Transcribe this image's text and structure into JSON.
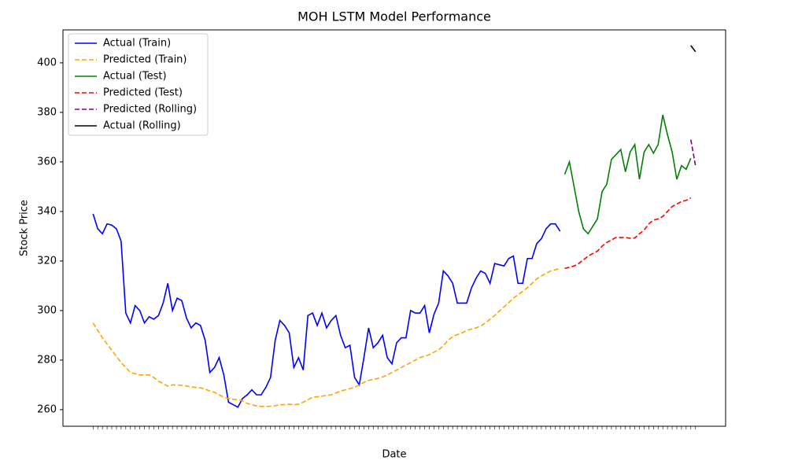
{
  "chart_data": {
    "type": "line",
    "title": "MOH LSTM Model Performance",
    "x_label": "Date",
    "y_label": "Stock Price",
    "ylim": [
      253.3,
      413.3
    ],
    "yticks": [
      260,
      280,
      300,
      320,
      340,
      360,
      380,
      400
    ],
    "legend": "upper left",
    "categories": [
      null,
      null,
      null,
      null,
      null,
      null,
      null,
      null,
      null,
      null,
      null,
      null,
      null,
      null,
      null,
      null,
      null,
      null,
      null,
      null,
      null,
      null,
      null,
      null,
      null,
      null,
      null,
      null,
      null,
      null,
      null,
      null,
      null,
      null,
      null,
      null,
      null,
      null,
      null,
      null,
      null,
      null,
      null,
      null,
      null,
      null,
      null,
      null,
      null,
      null,
      null,
      null,
      null,
      null,
      null,
      null,
      null,
      null,
      null,
      null,
      null,
      null,
      null,
      null,
      null,
      null,
      null,
      null,
      null,
      null,
      null,
      null,
      null,
      null,
      null,
      null,
      null,
      null,
      null,
      null,
      null,
      null,
      null,
      null,
      null,
      null,
      null,
      null,
      null,
      null,
      null,
      null,
      null,
      null,
      null,
      null,
      null,
      null,
      null,
      null,
      null,
      null,
      null,
      null,
      null,
      null,
      null,
      null,
      null,
      null,
      null,
      null,
      null,
      null,
      null,
      null,
      null,
      null,
      null,
      null,
      null,
      null,
      null,
      null,
      null,
      null,
      null,
      null,
      null,
      null
    ],
    "series": [
      {
        "name": "Actual (Train)",
        "color": "blue",
        "linestyle": "solid",
        "values": [
          339,
          333,
          331,
          335,
          334.5,
          333,
          328,
          299,
          295,
          302,
          300,
          295,
          297.5,
          296.5,
          298,
          303,
          311,
          300,
          305,
          304,
          297,
          293,
          295,
          294,
          288,
          275,
          277,
          281,
          274,
          263,
          262,
          261,
          264.5,
          266,
          268,
          266,
          266,
          269,
          273,
          288,
          296,
          294,
          291,
          277,
          281,
          276,
          298,
          299,
          294,
          299,
          293,
          296,
          298,
          290,
          285,
          286,
          273,
          270,
          281,
          293,
          285,
          287,
          290,
          281,
          278.5,
          287,
          289,
          289,
          300,
          299,
          299,
          302,
          291,
          298.5,
          303,
          316,
          314,
          311,
          303,
          303,
          303,
          309,
          313,
          316,
          315,
          311,
          319,
          318.5,
          318,
          321,
          322,
          311,
          311,
          321,
          321,
          327,
          329,
          333,
          335,
          335,
          332,
          null,
          null,
          null,
          null,
          null,
          null,
          null,
          null,
          null,
          null,
          null,
          null,
          null,
          null,
          null,
          null,
          null,
          null,
          null,
          null,
          null,
          null,
          null,
          null,
          null,
          null,
          null,
          null,
          null
        ]
      },
      {
        "name": "Predicted (Train)",
        "color": "orange",
        "linestyle": "dashed",
        "values": [
          295,
          292,
          289,
          286.5,
          284,
          281.5,
          279,
          277,
          275,
          274.5,
          274,
          274,
          274,
          273,
          271.5,
          270.5,
          269.5,
          270,
          270,
          269.8,
          269.5,
          269.2,
          269,
          268.8,
          268.3,
          267.5,
          267,
          266,
          265,
          264.5,
          264.2,
          264,
          263.5,
          262.5,
          262,
          261.5,
          261.3,
          261.3,
          261.4,
          261.6,
          262,
          262,
          262.2,
          262,
          262.2,
          263,
          264,
          265,
          265.2,
          265.4,
          265.8,
          266,
          266.8,
          267.5,
          268,
          268.5,
          269,
          270,
          271,
          271.8,
          272.2,
          272.6,
          273.2,
          274,
          275,
          276,
          277,
          278,
          279,
          280,
          281,
          281.6,
          282.2,
          283.2,
          284.2,
          285.8,
          288,
          289.5,
          290.3,
          291,
          292,
          292.5,
          293,
          293.8,
          295,
          296.5,
          298,
          299.8,
          301.5,
          303.2,
          305,
          306.4,
          307.8,
          309.2,
          311,
          312.8,
          314,
          315,
          316,
          316.5,
          317,
          null,
          null,
          null,
          null,
          null,
          null,
          null,
          null,
          null,
          null,
          null,
          null,
          null,
          null,
          null,
          null,
          null,
          null,
          null,
          null,
          null,
          null,
          null,
          null,
          null,
          null,
          null,
          null,
          null
        ]
      },
      {
        "name": "Actual (Test)",
        "color": "green",
        "linestyle": "solid",
        "values": [
          null,
          null,
          null,
          null,
          null,
          null,
          null,
          null,
          null,
          null,
          null,
          null,
          null,
          null,
          null,
          null,
          null,
          null,
          null,
          null,
          null,
          null,
          null,
          null,
          null,
          null,
          null,
          null,
          null,
          null,
          null,
          null,
          null,
          null,
          null,
          null,
          null,
          null,
          null,
          null,
          null,
          null,
          null,
          null,
          null,
          null,
          null,
          null,
          null,
          null,
          null,
          null,
          null,
          null,
          null,
          null,
          null,
          null,
          null,
          null,
          null,
          null,
          null,
          null,
          null,
          null,
          null,
          null,
          null,
          null,
          null,
          null,
          null,
          null,
          null,
          null,
          null,
          null,
          null,
          null,
          null,
          null,
          null,
          null,
          null,
          null,
          null,
          null,
          null,
          null,
          null,
          null,
          null,
          null,
          null,
          null,
          null,
          null,
          null,
          null,
          null,
          355,
          360,
          350,
          340,
          333,
          331,
          334,
          337,
          348,
          351,
          361,
          363,
          365,
          356,
          364,
          367,
          353,
          364,
          367,
          363.5,
          367,
          379,
          371,
          364,
          353,
          358.5,
          357,
          361.5,
          null
        ]
      },
      {
        "name": "Predicted (Test)",
        "color": "red",
        "linestyle": "dashed",
        "values": [
          null,
          null,
          null,
          null,
          null,
          null,
          null,
          null,
          null,
          null,
          null,
          null,
          null,
          null,
          null,
          null,
          null,
          null,
          null,
          null,
          null,
          null,
          null,
          null,
          null,
          null,
          null,
          null,
          null,
          null,
          null,
          null,
          null,
          null,
          null,
          null,
          null,
          null,
          null,
          null,
          null,
          null,
          null,
          null,
          null,
          null,
          null,
          null,
          null,
          null,
          null,
          null,
          null,
          null,
          null,
          null,
          null,
          null,
          null,
          null,
          null,
          null,
          null,
          null,
          null,
          null,
          null,
          null,
          null,
          null,
          null,
          null,
          null,
          null,
          null,
          null,
          null,
          null,
          null,
          null,
          null,
          null,
          null,
          null,
          null,
          null,
          null,
          null,
          null,
          null,
          null,
          null,
          null,
          null,
          null,
          null,
          null,
          null,
          null,
          null,
          null,
          317,
          317.5,
          318,
          319,
          320.5,
          322,
          323,
          324,
          326,
          327.5,
          328.5,
          329.5,
          329.5,
          329.5,
          329.2,
          329.3,
          331,
          332.5,
          335,
          336.5,
          337,
          338,
          340,
          342,
          343,
          344,
          344.5,
          345.5,
          null
        ]
      },
      {
        "name": "Predicted (Rolling)",
        "color": "purple",
        "linestyle": "dashed",
        "values": [
          null,
          null,
          null,
          null,
          null,
          null,
          null,
          null,
          null,
          null,
          null,
          null,
          null,
          null,
          null,
          null,
          null,
          null,
          null,
          null,
          null,
          null,
          null,
          null,
          null,
          null,
          null,
          null,
          null,
          null,
          null,
          null,
          null,
          null,
          null,
          null,
          null,
          null,
          null,
          null,
          null,
          null,
          null,
          null,
          null,
          null,
          null,
          null,
          null,
          null,
          null,
          null,
          null,
          null,
          null,
          null,
          null,
          null,
          null,
          null,
          null,
          null,
          null,
          null,
          null,
          null,
          null,
          null,
          null,
          null,
          null,
          null,
          null,
          null,
          null,
          null,
          null,
          null,
          null,
          null,
          null,
          null,
          null,
          null,
          null,
          null,
          null,
          null,
          null,
          null,
          null,
          null,
          null,
          null,
          null,
          null,
          null,
          null,
          null,
          null,
          null,
          null,
          null,
          null,
          null,
          null,
          null,
          null,
          null,
          null,
          null,
          null,
          null,
          null,
          null,
          null,
          null,
          null,
          null,
          null,
          null,
          null,
          null,
          null,
          null,
          null,
          null,
          null,
          369,
          358.5
        ]
      },
      {
        "name": "Actual (Rolling)",
        "color": "black",
        "linestyle": "solid",
        "values": [
          null,
          null,
          null,
          null,
          null,
          null,
          null,
          null,
          null,
          null,
          null,
          null,
          null,
          null,
          null,
          null,
          null,
          null,
          null,
          null,
          null,
          null,
          null,
          null,
          null,
          null,
          null,
          null,
          null,
          null,
          null,
          null,
          null,
          null,
          null,
          null,
          null,
          null,
          null,
          null,
          null,
          null,
          null,
          null,
          null,
          null,
          null,
          null,
          null,
          null,
          null,
          null,
          null,
          null,
          null,
          null,
          null,
          null,
          null,
          null,
          null,
          null,
          null,
          null,
          null,
          null,
          null,
          null,
          null,
          null,
          null,
          null,
          null,
          null,
          null,
          null,
          null,
          null,
          null,
          null,
          null,
          null,
          null,
          null,
          null,
          null,
          null,
          null,
          null,
          null,
          null,
          null,
          null,
          null,
          null,
          null,
          null,
          null,
          null,
          null,
          null,
          null,
          null,
          null,
          null,
          null,
          null,
          null,
          null,
          null,
          null,
          null,
          null,
          null,
          null,
          null,
          null,
          null,
          null,
          null,
          null,
          null,
          null,
          null,
          null,
          null,
          null,
          null,
          407,
          404.5
        ]
      }
    ]
  }
}
